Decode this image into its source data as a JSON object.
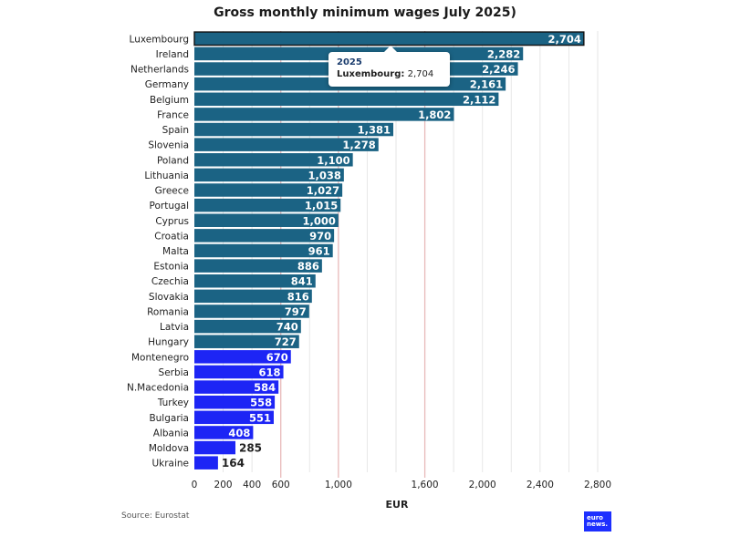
{
  "chart_data": {
    "type": "bar",
    "orientation": "horizontal",
    "title": "Gross monthly minimum wages July 2025)",
    "xlabel": "EUR",
    "ylabel": "",
    "xlim": [
      0,
      2800
    ],
    "x_ticks": [
      0,
      200,
      400,
      600,
      1000,
      1600,
      2000,
      2400,
      2800
    ],
    "x_tick_labels": [
      "0",
      "200",
      "400",
      "600",
      "1,000",
      "1,600",
      "2,000",
      "2,400",
      "2,800"
    ],
    "reference_lines": [
      600,
      1000,
      1600
    ],
    "categories": [
      "Luxembourg",
      "Ireland",
      "Netherlands",
      "Germany",
      "Belgium",
      "France",
      "Spain",
      "Slovenia",
      "Poland",
      "Lithuania",
      "Greece",
      "Portugal",
      "Cyprus",
      "Croatia",
      "Malta",
      "Estonia",
      "Czechia",
      "Slovakia",
      "Romania",
      "Latvia",
      "Hungary",
      "Montenegro",
      "Serbia",
      "N.Macedonia",
      "Turkey",
      "Bulgaria",
      "Albania",
      "Moldova",
      "Ukraine"
    ],
    "values": [
      2704,
      2282,
      2246,
      2161,
      2112,
      1802,
      1381,
      1278,
      1100,
      1038,
      1027,
      1015,
      1000,
      970,
      961,
      886,
      841,
      816,
      797,
      740,
      727,
      670,
      618,
      584,
      558,
      551,
      408,
      285,
      164
    ],
    "value_labels": [
      "2,704",
      "2,282",
      "2,246",
      "2,161",
      "2,112",
      "1,802",
      "1,381",
      "1,278",
      "1,100",
      "1,038",
      "1,027",
      "1,015",
      "1,000",
      "970",
      "961",
      "886",
      "841",
      "816",
      "797",
      "740",
      "727",
      "670",
      "618",
      "584",
      "558",
      "551",
      "408",
      "285",
      "164"
    ],
    "groups": [
      "EU",
      "EU",
      "EU",
      "EU",
      "EU",
      "EU",
      "EU",
      "EU",
      "EU",
      "EU",
      "EU",
      "EU",
      "EU",
      "EU",
      "EU",
      "EU",
      "EU",
      "EU",
      "EU",
      "EU",
      "EU",
      "non-EU",
      "non-EU",
      "non-EU",
      "non-EU",
      "non-EU",
      "non-EU",
      "non-EU",
      "non-EU"
    ],
    "highlighted": "Luxembourg",
    "colors": {
      "EU": "#1b6384",
      "non-EU": "#1d25f5",
      "reference_line": "#e8b9b9",
      "grid": "#e6e6e6"
    }
  },
  "tooltip": {
    "year": "2025",
    "label": "Luxembourg:",
    "value": "2,704"
  },
  "source": "Source: Eurostat",
  "logo": {
    "line1": "euro",
    "line2": "news."
  }
}
